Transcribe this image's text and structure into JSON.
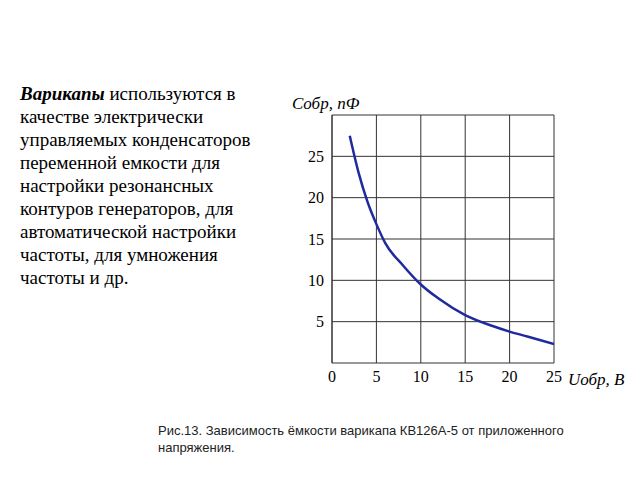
{
  "chart_data": {
    "type": "line",
    "xlabel": "Uобр, В",
    "ylabel": "Cобр, пФ",
    "x": [
      2,
      3,
      4,
      5,
      6,
      8,
      10,
      12,
      15,
      18,
      20,
      22,
      25
    ],
    "series": [
      {
        "name": "КВ126А-5",
        "color": "#1f2a9e",
        "values": [
          27.5,
          23,
          19.5,
          16.8,
          14.5,
          11.8,
          9.5,
          7.8,
          5.8,
          4.5,
          3.8,
          3.2,
          2.3
        ]
      }
    ],
    "xlim": [
      0,
      25
    ],
    "xticks": [
      0,
      5,
      10,
      15,
      20,
      25
    ],
    "ylim": [
      0,
      30
    ],
    "yticks": [
      5,
      10,
      15,
      20,
      25
    ],
    "grid": true
  },
  "text": {
    "lead": "Варикапы",
    "body": "используются в качестве электрически управляемых конденсаторов переменной емкости для настройки резонансных контуров генераторов, для автоматической настройки частоты, для умножения частоты и др."
  },
  "caption": "Рис.13. Зависимость ёмкости варикапа КВ126А-5 от приложенного напряжения."
}
